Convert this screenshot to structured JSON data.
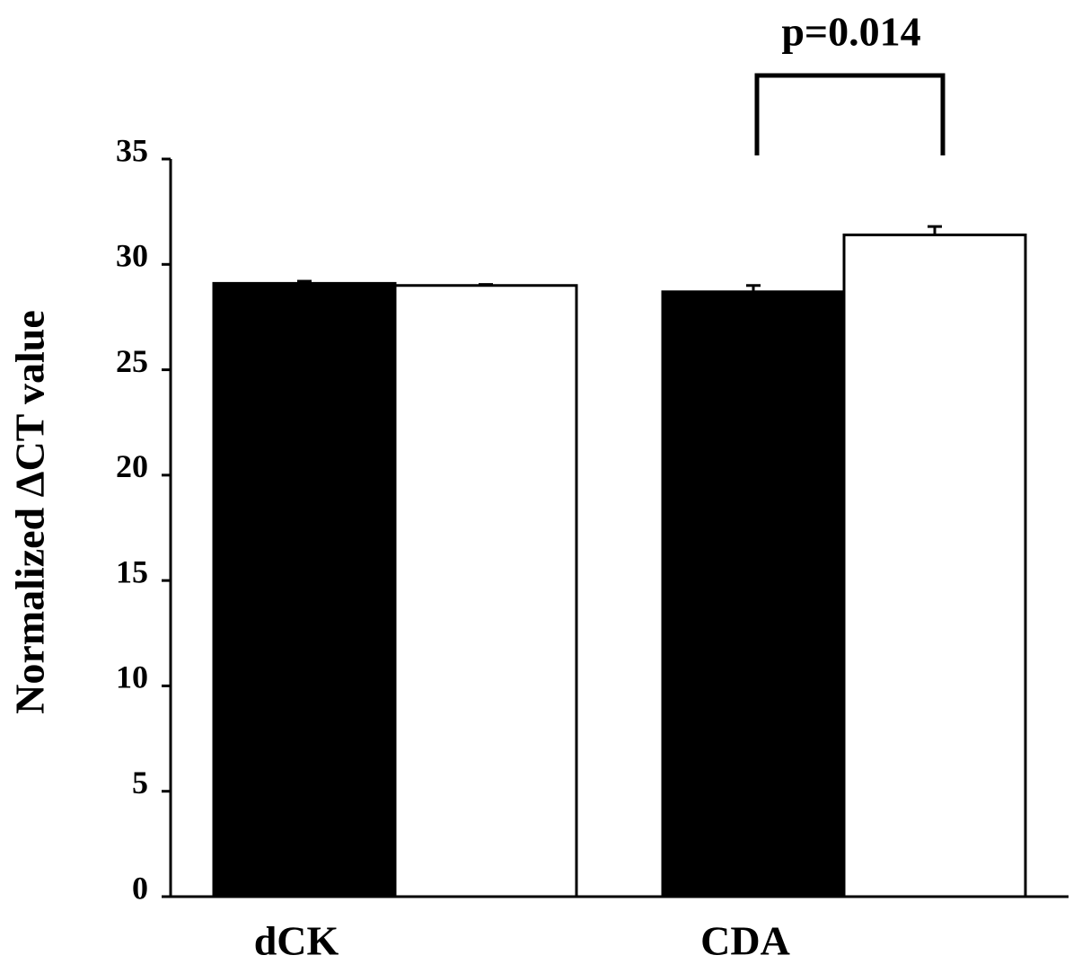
{
  "chart_data": {
    "type": "bar",
    "y_label": "Normalized ΔCT value",
    "annotation": "p=0.014",
    "categories": [
      "dCK",
      "CDA"
    ],
    "series": [
      {
        "color": "#000000",
        "values": [
          29.1,
          28.7
        ],
        "errors": [
          0.1,
          0.3
        ]
      },
      {
        "color": "#ffffff",
        "values": [
          29.0,
          31.4
        ],
        "errors": [
          0.05,
          0.4
        ]
      }
    ],
    "ylim": [
      0,
      35
    ],
    "yticks": [
      0,
      5,
      10,
      15,
      20,
      25,
      30,
      35
    ],
    "grid": false
  }
}
